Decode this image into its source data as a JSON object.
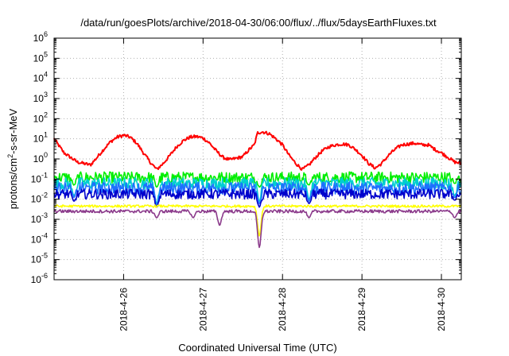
{
  "chart_data": {
    "type": "line",
    "title": "/data/run/goesPlots/archive/2018-04-30/06:00/flux/../flux/5daysEarthFluxes.txt",
    "xlabel": "Coordinated Universal Time (UTC)",
    "ylabel": {
      "prefix": "protons/cm",
      "sup": "2",
      "suffix": "-s-sr-MeV"
    },
    "yscale": "log",
    "ylim_exp": [
      -6,
      6
    ],
    "y_ticks": [
      {
        "base": "10",
        "exp": "-6"
      },
      {
        "base": "10",
        "exp": "-5"
      },
      {
        "base": "10",
        "exp": "-4"
      },
      {
        "base": "10",
        "exp": "-3"
      },
      {
        "base": "10",
        "exp": "-2"
      },
      {
        "base": "10",
        "exp": "-1"
      },
      {
        "base": "10",
        "exp": "0"
      },
      {
        "base": "10",
        "exp": "1"
      },
      {
        "base": "10",
        "exp": "2"
      },
      {
        "base": "10",
        "exp": "3"
      },
      {
        "base": "10",
        "exp": "4"
      },
      {
        "base": "10",
        "exp": "5"
      },
      {
        "base": "10",
        "exp": "6"
      }
    ],
    "xlim": [
      "2018-04-25 03:00",
      "2018-04-30 06:00"
    ],
    "x_ticks": [
      "2018-4-26",
      "2018-4-27",
      "2018-4-28",
      "2018-4-29",
      "2018-4-30"
    ],
    "grid": true,
    "series": [
      {
        "color": "#ff0000",
        "baseline": [
          [
            "2018-04-25 03:00",
            10
          ],
          [
            "2018-04-25 06:00",
            2
          ],
          [
            "2018-04-25 10:00",
            0.7
          ],
          [
            "2018-04-25 14:00",
            0.5
          ],
          [
            "2018-04-25 16:00",
            1.2
          ],
          [
            "2018-04-25 18:00",
            3
          ],
          [
            "2018-04-25 20:00",
            7
          ],
          [
            "2018-04-25 22:00",
            12
          ],
          [
            "2018-04-26 00:00",
            15
          ],
          [
            "2018-04-26 02:00",
            12
          ],
          [
            "2018-04-26 04:00",
            6
          ],
          [
            "2018-04-26 06:00",
            2
          ],
          [
            "2018-04-26 08:00",
            0.7
          ],
          [
            "2018-04-26 10:00",
            0.3
          ],
          [
            "2018-04-26 12:00",
            0.6
          ],
          [
            "2018-04-26 14:00",
            1.5
          ],
          [
            "2018-04-26 16:00",
            4
          ],
          [
            "2018-04-26 18:00",
            8
          ],
          [
            "2018-04-26 20:00",
            12
          ],
          [
            "2018-04-26 22:00",
            13
          ],
          [
            "2018-04-27 00:00",
            11
          ],
          [
            "2018-04-27 02:00",
            6
          ],
          [
            "2018-04-27 04:00",
            2.5
          ],
          [
            "2018-04-27 06:00",
            1.2
          ],
          [
            "2018-04-27 08:00",
            0.9
          ],
          [
            "2018-04-27 12:00",
            1.3
          ],
          [
            "2018-04-27 14:00",
            3
          ],
          [
            "2018-04-27 15:30",
            5
          ],
          [
            "2018-04-27 16:30",
            20
          ],
          [
            "2018-04-27 18:00",
            22
          ],
          [
            "2018-04-27 20:00",
            18
          ],
          [
            "2018-04-27 22:00",
            10
          ],
          [
            "2018-04-28 00:00",
            5
          ],
          [
            "2018-04-28 02:00",
            1.5
          ],
          [
            "2018-04-28 04:00",
            0.6
          ],
          [
            "2018-04-28 06:00",
            0.3
          ],
          [
            "2018-04-28 08:00",
            0.5
          ],
          [
            "2018-04-28 10:00",
            1.2
          ],
          [
            "2018-04-28 12:00",
            2.5
          ],
          [
            "2018-04-28 14:00",
            4
          ],
          [
            "2018-04-28 16:00",
            5
          ],
          [
            "2018-04-28 18:00",
            5.5
          ],
          [
            "2018-04-28 20:00",
            5
          ],
          [
            "2018-04-28 22:00",
            3
          ],
          [
            "2018-04-29 00:00",
            1.5
          ],
          [
            "2018-04-29 02:00",
            0.6
          ],
          [
            "2018-04-29 04:00",
            0.35
          ],
          [
            "2018-04-29 06:00",
            0.6
          ],
          [
            "2018-04-29 08:00",
            1.5
          ],
          [
            "2018-04-29 10:00",
            3
          ],
          [
            "2018-04-29 12:00",
            5
          ],
          [
            "2018-04-29 14:00",
            5.5
          ],
          [
            "2018-04-29 16:00",
            6
          ],
          [
            "2018-04-29 18:00",
            5
          ],
          [
            "2018-04-29 20:00",
            5
          ],
          [
            "2018-04-29 22:00",
            3
          ],
          [
            "2018-04-30 00:00",
            2
          ],
          [
            "2018-04-30 02:00",
            1.2
          ],
          [
            "2018-04-30 04:00",
            0.7
          ],
          [
            "2018-04-30 06:00",
            0.6
          ]
        ],
        "noise": 0.08,
        "dips": []
      },
      {
        "color": "#00ee00",
        "baseline": [
          [
            "2018-04-25 03:00",
            0.12
          ],
          [
            "2018-04-30 06:00",
            0.12
          ]
        ],
        "noise": 0.28,
        "dips": [
          [
            "2018-04-25 09:00",
            0.05
          ],
          [
            "2018-04-26 10:00",
            0.04
          ],
          [
            "2018-04-27 17:00",
            0.04
          ],
          [
            "2018-04-28 08:00",
            0.05
          ],
          [
            "2018-04-30 04:00",
            0.06
          ]
        ]
      },
      {
        "color": "#00ced1",
        "baseline": [
          [
            "2018-04-25 03:00",
            0.06
          ],
          [
            "2018-04-30 06:00",
            0.06
          ]
        ],
        "noise": 0.3,
        "dips": [
          [
            "2018-04-25 09:00",
            0.015
          ],
          [
            "2018-04-26 10:00",
            0.006
          ],
          [
            "2018-04-27 17:00",
            0.008
          ],
          [
            "2018-04-28 08:00",
            0.01
          ],
          [
            "2018-04-30 04:00",
            0.015
          ]
        ]
      },
      {
        "color": "#1e6fff",
        "baseline": [
          [
            "2018-04-25 03:00",
            0.035
          ],
          [
            "2018-04-30 06:00",
            0.035
          ]
        ],
        "noise": 0.3,
        "dips": [
          [
            "2018-04-25 09:00",
            0.012
          ],
          [
            "2018-04-26 10:00",
            0.005
          ],
          [
            "2018-04-27 17:00",
            0.006
          ],
          [
            "2018-04-28 08:00",
            0.008
          ],
          [
            "2018-04-30 04:00",
            0.012
          ]
        ]
      },
      {
        "color": "#0000cc",
        "baseline": [
          [
            "2018-04-25 03:00",
            0.018
          ],
          [
            "2018-04-30 06:00",
            0.018
          ]
        ],
        "noise": 0.25,
        "dips": [
          [
            "2018-04-25 09:00",
            0.008
          ],
          [
            "2018-04-26 10:00",
            0.004
          ],
          [
            "2018-04-27 17:00",
            0.004
          ],
          [
            "2018-04-28 08:00",
            0.006
          ],
          [
            "2018-04-30 04:00",
            0.009
          ]
        ]
      },
      {
        "color": "#ffff00",
        "baseline": [
          [
            "2018-04-25 03:00",
            0.0045
          ],
          [
            "2018-04-30 06:00",
            0.0045
          ]
        ],
        "noise": 0.06,
        "dips": [
          [
            "2018-04-27 17:00",
            0.00015
          ]
        ]
      },
      {
        "color": "#8b3a8b",
        "baseline": [
          [
            "2018-04-25 03:00",
            0.0025
          ],
          [
            "2018-04-30 06:00",
            0.0025
          ]
        ],
        "noise": 0.08,
        "dips": [
          [
            "2018-04-26 10:00",
            0.0012
          ],
          [
            "2018-04-26 21:00",
            0.0012
          ],
          [
            "2018-04-27 05:00",
            0.0005
          ],
          [
            "2018-04-27 17:00",
            4e-05
          ],
          [
            "2018-04-28 08:00",
            0.0012
          ],
          [
            "2018-04-30 04:00",
            0.0012
          ]
        ]
      }
    ]
  }
}
